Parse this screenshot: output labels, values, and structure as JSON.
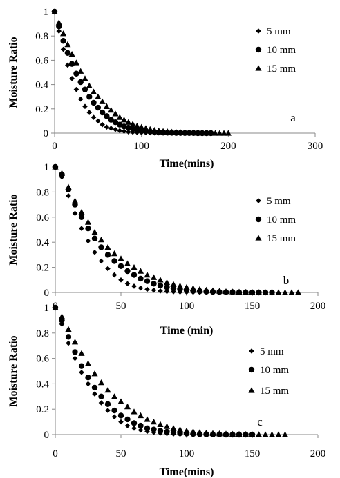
{
  "chart_data": [
    {
      "type": "scatter",
      "panel_label": "a",
      "xlabel": "Time(mins)",
      "ylabel": "Moisture Ratio",
      "xlim": [
        0,
        300
      ],
      "ylim": [
        0,
        1
      ],
      "xticks": [
        "0",
        "100",
        "200",
        "300"
      ],
      "yticks": [
        "0",
        "0.2",
        "0.4",
        "0.6",
        "0.8",
        "1"
      ],
      "grid": false,
      "legend_position": "top-right",
      "series": [
        {
          "name": "5 mm",
          "marker": "diamond",
          "x": [
            0,
            5,
            10,
            15,
            20,
            25,
            30,
            35,
            40,
            45,
            50,
            55,
            60,
            65,
            70,
            75,
            80,
            85,
            90,
            95,
            100,
            105,
            110,
            115,
            120,
            125,
            130,
            135,
            140,
            145,
            150,
            155,
            160
          ],
          "y": [
            1.0,
            0.84,
            0.69,
            0.56,
            0.45,
            0.36,
            0.28,
            0.22,
            0.17,
            0.13,
            0.1,
            0.07,
            0.05,
            0.04,
            0.03,
            0.02,
            0.015,
            0.01,
            0.008,
            0.006,
            0.005,
            0.004,
            0.003,
            0.002,
            0.002,
            0.001,
            0.001,
            0.001,
            0.001,
            0.0,
            0.0,
            0.0,
            0.0
          ]
        },
        {
          "name": "10 mm",
          "marker": "circle",
          "x": [
            0,
            5,
            10,
            15,
            20,
            25,
            30,
            35,
            40,
            45,
            50,
            55,
            60,
            65,
            70,
            75,
            80,
            85,
            90,
            95,
            100,
            105,
            110,
            115,
            120,
            125,
            130,
            135,
            140,
            145,
            150,
            155,
            160,
            165,
            170,
            175,
            180
          ],
          "y": [
            1.0,
            0.88,
            0.76,
            0.66,
            0.57,
            0.49,
            0.42,
            0.36,
            0.3,
            0.25,
            0.21,
            0.17,
            0.14,
            0.11,
            0.09,
            0.07,
            0.055,
            0.045,
            0.035,
            0.027,
            0.02,
            0.015,
            0.012,
            0.009,
            0.007,
            0.005,
            0.004,
            0.003,
            0.002,
            0.002,
            0.001,
            0.001,
            0.001,
            0.0,
            0.0,
            0.0,
            0.0
          ]
        },
        {
          "name": "15 mm",
          "marker": "triangle",
          "x": [
            0,
            5,
            10,
            15,
            20,
            25,
            30,
            35,
            40,
            45,
            50,
            55,
            60,
            65,
            70,
            75,
            80,
            85,
            90,
            95,
            100,
            105,
            110,
            115,
            120,
            125,
            130,
            135,
            140,
            145,
            150,
            155,
            160,
            165,
            170,
            175,
            180,
            185,
            190,
            195,
            200
          ],
          "y": [
            1.0,
            0.91,
            0.82,
            0.73,
            0.65,
            0.58,
            0.51,
            0.45,
            0.39,
            0.34,
            0.3,
            0.26,
            0.22,
            0.19,
            0.16,
            0.13,
            0.11,
            0.09,
            0.075,
            0.06,
            0.05,
            0.04,
            0.032,
            0.025,
            0.02,
            0.016,
            0.013,
            0.01,
            0.008,
            0.006,
            0.005,
            0.004,
            0.003,
            0.002,
            0.002,
            0.001,
            0.001,
            0.0,
            0.0,
            0.0,
            0.0
          ]
        }
      ]
    },
    {
      "type": "scatter",
      "panel_label": "b",
      "xlabel": "Time (min)",
      "ylabel": "Moisture Ratio",
      "xlim": [
        0,
        200
      ],
      "ylim": [
        0,
        1
      ],
      "xticks": [
        "0",
        "50",
        "100",
        "150",
        "200"
      ],
      "yticks": [
        "0",
        "0.2",
        "0.4",
        "0.6",
        "0.8",
        "1"
      ],
      "grid": false,
      "legend_position": "right",
      "series": [
        {
          "name": "5 mm",
          "marker": "diamond",
          "x": [
            0,
            5,
            10,
            15,
            20,
            25,
            30,
            35,
            40,
            45,
            50,
            55,
            60,
            65,
            70,
            75,
            80,
            85,
            90,
            95,
            100,
            105,
            110,
            115,
            120,
            125,
            130,
            135,
            140,
            145,
            150
          ],
          "y": [
            1.0,
            0.92,
            0.77,
            0.63,
            0.51,
            0.41,
            0.32,
            0.25,
            0.19,
            0.14,
            0.1,
            0.07,
            0.05,
            0.035,
            0.025,
            0.018,
            0.012,
            0.008,
            0.006,
            0.004,
            0.003,
            0.002,
            0.001,
            0.001,
            0.0,
            0.0,
            0.0,
            0.0,
            0.0,
            0.0,
            0.0
          ]
        },
        {
          "name": "10 mm",
          "marker": "circle",
          "x": [
            0,
            5,
            10,
            15,
            20,
            25,
            30,
            35,
            40,
            45,
            50,
            55,
            60,
            65,
            70,
            75,
            80,
            85,
            90,
            95,
            100,
            105,
            110,
            115,
            120,
            125,
            130,
            135,
            140,
            145,
            150,
            155,
            160,
            165
          ],
          "y": [
            1.0,
            0.94,
            0.82,
            0.7,
            0.6,
            0.51,
            0.43,
            0.36,
            0.3,
            0.25,
            0.21,
            0.17,
            0.14,
            0.11,
            0.09,
            0.07,
            0.055,
            0.042,
            0.032,
            0.024,
            0.018,
            0.013,
            0.01,
            0.007,
            0.005,
            0.004,
            0.003,
            0.002,
            0.001,
            0.001,
            0.0,
            0.0,
            0.0,
            0.0
          ]
        },
        {
          "name": "15 mm",
          "marker": "triangle",
          "x": [
            0,
            5,
            10,
            15,
            20,
            25,
            30,
            35,
            40,
            45,
            50,
            55,
            60,
            65,
            70,
            75,
            80,
            85,
            90,
            95,
            100,
            105,
            110,
            115,
            120,
            125,
            130,
            135,
            140,
            145,
            150,
            155,
            160,
            165,
            170,
            175,
            180,
            185
          ],
          "y": [
            1.0,
            0.95,
            0.84,
            0.73,
            0.64,
            0.56,
            0.48,
            0.42,
            0.36,
            0.31,
            0.27,
            0.23,
            0.2,
            0.17,
            0.14,
            0.12,
            0.1,
            0.08,
            0.065,
            0.052,
            0.042,
            0.033,
            0.026,
            0.02,
            0.015,
            0.011,
            0.008,
            0.006,
            0.004,
            0.003,
            0.002,
            0.001,
            0.001,
            0.0,
            0.0,
            0.0,
            0.0,
            0.0
          ]
        }
      ]
    },
    {
      "type": "scatter",
      "panel_label": "c",
      "xlabel": "Time(mins)",
      "ylabel": "Moisture Ratio",
      "xlim": [
        0,
        200
      ],
      "ylim": [
        0,
        1
      ],
      "xticks": [
        "0",
        "50",
        "100",
        "150",
        "200"
      ],
      "yticks": [
        "0",
        "0.2",
        "0.4",
        "0.6",
        "0.8",
        "1"
      ],
      "grid": false,
      "legend_position": "right",
      "series": [
        {
          "name": "5 mm",
          "marker": "diamond",
          "x": [
            0,
            5,
            10,
            15,
            20,
            25,
            30,
            35,
            40,
            45,
            50,
            55,
            60,
            65,
            70,
            75,
            80,
            85,
            90,
            95,
            100,
            105,
            110,
            115,
            120,
            125,
            130,
            135,
            140
          ],
          "y": [
            1.0,
            0.87,
            0.72,
            0.6,
            0.49,
            0.4,
            0.32,
            0.25,
            0.19,
            0.14,
            0.1,
            0.07,
            0.05,
            0.035,
            0.025,
            0.017,
            0.012,
            0.008,
            0.005,
            0.003,
            0.002,
            0.001,
            0.001,
            0.0,
            0.0,
            0.0,
            0.0,
            0.0,
            0.0
          ]
        },
        {
          "name": "10 mm",
          "marker": "circle",
          "x": [
            0,
            5,
            10,
            15,
            20,
            25,
            30,
            35,
            40,
            45,
            50,
            55,
            60,
            65,
            70,
            75,
            80,
            85,
            90,
            95,
            100,
            105,
            110,
            115,
            120,
            125,
            130,
            135,
            140,
            145,
            150
          ],
          "y": [
            1.0,
            0.9,
            0.77,
            0.65,
            0.54,
            0.45,
            0.37,
            0.3,
            0.24,
            0.19,
            0.15,
            0.12,
            0.09,
            0.07,
            0.05,
            0.04,
            0.03,
            0.022,
            0.016,
            0.011,
            0.008,
            0.005,
            0.003,
            0.002,
            0.001,
            0.001,
            0.0,
            0.0,
            0.0,
            0.0,
            0.0
          ]
        },
        {
          "name": "15 mm",
          "marker": "triangle",
          "x": [
            0,
            5,
            10,
            15,
            20,
            25,
            30,
            35,
            40,
            45,
            50,
            55,
            60,
            65,
            70,
            75,
            80,
            85,
            90,
            95,
            100,
            105,
            110,
            115,
            120,
            125,
            130,
            135,
            140,
            145,
            150,
            155,
            160,
            165,
            170,
            175
          ],
          "y": [
            1.0,
            0.93,
            0.83,
            0.73,
            0.64,
            0.56,
            0.48,
            0.41,
            0.35,
            0.3,
            0.26,
            0.22,
            0.18,
            0.15,
            0.12,
            0.1,
            0.08,
            0.065,
            0.05,
            0.04,
            0.03,
            0.024,
            0.018,
            0.014,
            0.01,
            0.008,
            0.006,
            0.004,
            0.003,
            0.002,
            0.001,
            0.001,
            0.0,
            0.0,
            0.0,
            0.0
          ]
        }
      ]
    }
  ]
}
